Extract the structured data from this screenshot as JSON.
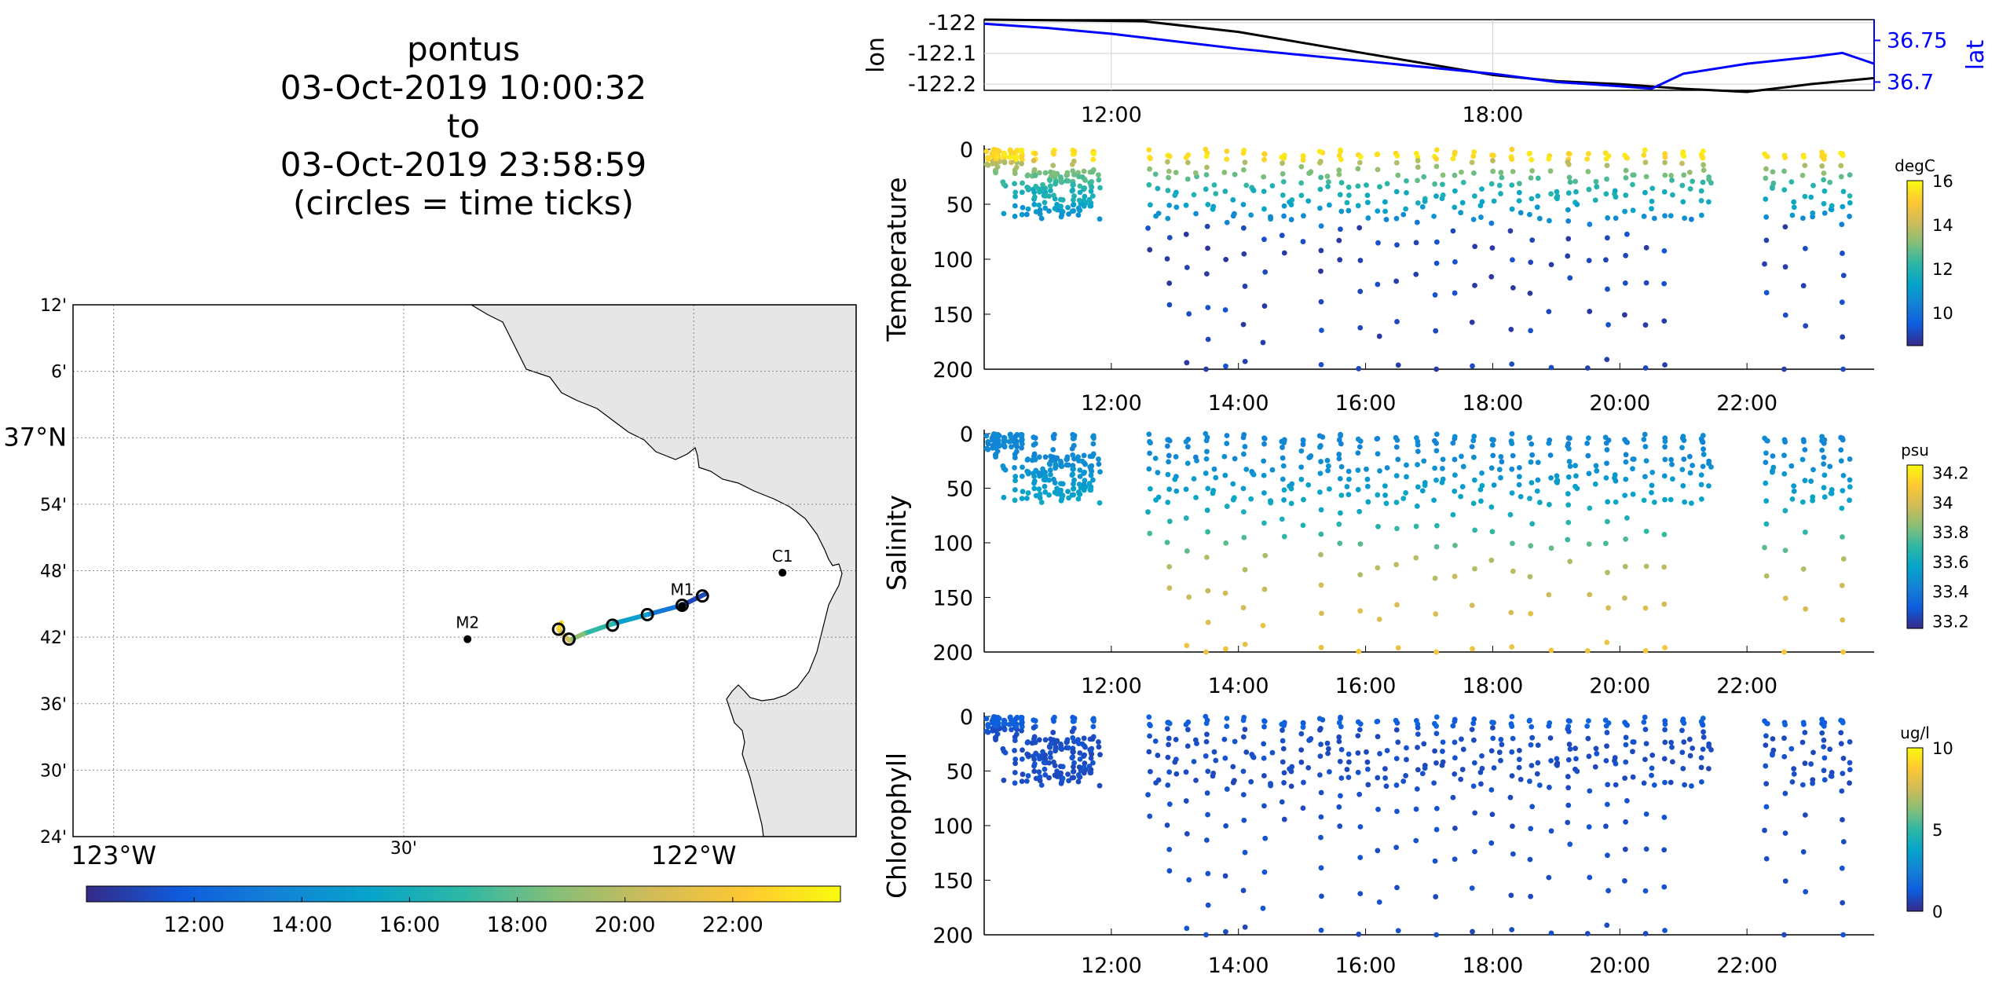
{
  "title": {
    "platform": "pontus",
    "start": "03-Oct-2019 10:00:32",
    "to": "to",
    "end": "03-Oct-2019 23:58:59",
    "note": "(circles = time ticks)"
  },
  "colors": {
    "track_lon": "#000000",
    "track_lat": "#0000ff",
    "land": "#e6e6e6",
    "grid": "#b0b0b0",
    "parula": [
      "#352a87",
      "#0f5cdd",
      "#1481d6",
      "#06a4ca",
      "#2eb7a4",
      "#87bf77",
      "#d1bb59",
      "#fec832",
      "#f9fb0e"
    ]
  },
  "map": {
    "lat_ticks": [
      "12'",
      "6'",
      "37°N",
      "54'",
      "48'",
      "42'",
      "36'",
      "30'",
      "24'"
    ],
    "lon_ticks": [
      "123°W",
      "30'",
      "122°W"
    ],
    "stations": [
      {
        "name": "C1",
        "lon": -121.847,
        "lat": 36.797
      },
      {
        "name": "M1",
        "lon": -122.02,
        "lat": 36.747
      },
      {
        "name": "M2",
        "lon": -122.39,
        "lat": 36.697
      }
    ],
    "track": [
      {
        "lon": -121.98,
        "lat": 36.765,
        "hour": 10.0
      },
      {
        "lon": -122.02,
        "lat": 36.748,
        "hour": 12.0
      },
      {
        "lon": -122.08,
        "lat": 36.734,
        "hour": 14.0
      },
      {
        "lon": -122.14,
        "lat": 36.72,
        "hour": 16.0
      },
      {
        "lon": -122.19,
        "lat": 36.705,
        "hour": 18.0
      },
      {
        "lon": -122.215,
        "lat": 36.695,
        "hour": 19.5
      },
      {
        "lon": -122.233,
        "lat": 36.712,
        "hour": 21.5
      },
      {
        "lon": -122.228,
        "lat": 36.722,
        "hour": 23.9
      }
    ],
    "time_ticks": [
      {
        "lon": -121.985,
        "lat": 36.762
      },
      {
        "lon": -122.02,
        "lat": 36.748
      },
      {
        "lon": -122.08,
        "lat": 36.734
      },
      {
        "lon": -122.14,
        "lat": 36.718
      },
      {
        "lon": -122.215,
        "lat": 36.697
      },
      {
        "lon": -122.233,
        "lat": 36.712
      }
    ],
    "colorbar_ticks": [
      "12:00",
      "14:00",
      "16:00",
      "18:00",
      "20:00",
      "22:00"
    ]
  },
  "chart_data": [
    {
      "type": "line",
      "ylabel": "lon",
      "y2label": "lat",
      "x_ticks": [
        "12:00",
        "18:00"
      ],
      "ylim": [
        -122.22,
        -121.99
      ],
      "y2lim": [
        36.69,
        36.775
      ],
      "yticks": [
        -122,
        -122.1,
        -122.2
      ],
      "y2ticks": [
        36.75,
        36.7
      ],
      "series": [
        {
          "name": "lon",
          "x": [
            10.0,
            12.5,
            14.0,
            16.0,
            18.0,
            19.0,
            20.0,
            21.0,
            22.0,
            23.0,
            24.0
          ],
          "values": [
            -121.99,
            -121.995,
            -122.03,
            -122.1,
            -122.17,
            -122.19,
            -122.2,
            -122.215,
            -122.225,
            -122.2,
            -122.18
          ]
        },
        {
          "name": "lat",
          "x": [
            10.0,
            11.0,
            12.0,
            14.0,
            16.0,
            18.0,
            19.0,
            20.0,
            20.5,
            21.0,
            22.0,
            23.0,
            23.5,
            24.0
          ],
          "values": [
            36.77,
            36.765,
            36.758,
            36.74,
            36.725,
            36.71,
            36.7,
            36.695,
            36.692,
            36.71,
            36.722,
            36.73,
            36.735,
            36.722
          ]
        }
      ]
    },
    {
      "type": "scatter",
      "ylabel": "Temperature",
      "units": "degC",
      "ylim": [
        0,
        200
      ],
      "yticks": [
        0,
        50,
        100,
        150,
        200
      ],
      "clim": [
        8.5,
        16
      ],
      "cticks": [
        10,
        12,
        14,
        16
      ],
      "x_ticks": [
        "12:00",
        "14:00",
        "16:00",
        "18:00",
        "20:00",
        "22:00"
      ],
      "profile_hours": [
        10.2,
        10.5,
        10.8,
        11.1,
        11.4,
        11.7,
        12.6,
        12.9,
        13.2,
        13.5,
        13.8,
        14.1,
        14.4,
        14.7,
        15.0,
        15.3,
        15.6,
        15.9,
        16.2,
        16.5,
        16.8,
        17.1,
        17.4,
        17.7,
        18.0,
        18.3,
        18.6,
        18.9,
        19.2,
        19.5,
        19.8,
        20.1,
        20.4,
        20.7,
        21.0,
        21.3,
        22.3,
        22.6,
        22.9,
        23.2,
        23.5
      ],
      "profile_max_depth": [
        20,
        60,
        55,
        50,
        45,
        40,
        90,
        140,
        190,
        200,
        195,
        190,
        175,
        90,
        80,
        195,
        100,
        195,
        165,
        195,
        110,
        195,
        130,
        195,
        115,
        195,
        160,
        195,
        115,
        195,
        190,
        150,
        195,
        195,
        60,
        55,
        130,
        200,
        160,
        55,
        200
      ]
    },
    {
      "type": "scatter",
      "ylabel": "Salinity",
      "units": "psu",
      "ylim": [
        0,
        200
      ],
      "yticks": [
        0,
        50,
        100,
        150,
        200
      ],
      "clim": [
        33.15,
        34.25
      ],
      "cticks": [
        33.2,
        33.4,
        33.6,
        33.8,
        34,
        34.2
      ],
      "x_ticks": [
        "12:00",
        "14:00",
        "16:00",
        "18:00",
        "20:00",
        "22:00"
      ]
    },
    {
      "type": "scatter",
      "ylabel": "Chlorophyll",
      "units": "ug/l",
      "ylim": [
        0,
        200
      ],
      "yticks": [
        0,
        50,
        100,
        150,
        200
      ],
      "clim": [
        0,
        10
      ],
      "cticks": [
        0,
        5,
        10
      ],
      "x_ticks": [
        "12:00",
        "14:00",
        "16:00",
        "18:00",
        "20:00",
        "22:00"
      ]
    }
  ]
}
